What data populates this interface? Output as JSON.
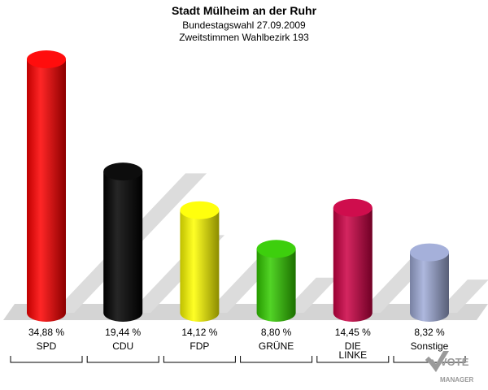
{
  "chart_data": {
    "type": "bar",
    "title": "Stadt Mülheim an der Ruhr",
    "subtitle": "Bundestagswahl 27.09.2009",
    "subtitle2": "Zweitstimmen Wahlbezirk 193",
    "categories": [
      "SPD",
      "CDU",
      "FDP",
      "GRÜNE",
      "DIE LINKE",
      "Sonstige"
    ],
    "category_lines": [
      [
        "SPD"
      ],
      [
        "CDU"
      ],
      [
        "FDP"
      ],
      [
        "GRÜNE"
      ],
      [
        "DIE",
        "LINKE"
      ],
      [
        "Sonstige"
      ]
    ],
    "values": [
      34.88,
      19.44,
      14.12,
      8.8,
      14.45,
      8.32
    ],
    "value_labels": [
      "34,88 %",
      "19,44 %",
      "14,12 %",
      "8,80 %",
      "14,45 %",
      "8,32 %"
    ],
    "colors": [
      "#ff0000",
      "#000000",
      "#ffff00",
      "#33cc00",
      "#cc0044",
      "#a0acd8"
    ],
    "ylim": [
      0,
      34.88
    ]
  },
  "logo": {
    "text_top": "VOTE",
    "text_bottom": "MANAGER"
  }
}
